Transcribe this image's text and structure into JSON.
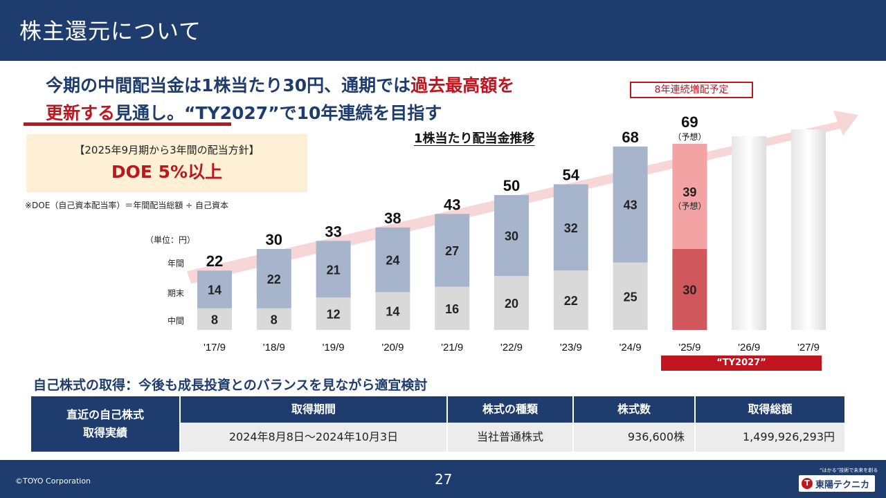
{
  "header": {
    "title": "株主還元について"
  },
  "headline": {
    "part1": "今期の中間配当金は1株当たり30円、通期では",
    "part2_red": "過去最高額を",
    "part3_red": "更新する",
    "part4": "見通し。“TY2027”で10年連続を目指す"
  },
  "policy": {
    "line1": "【2025年9月期から3年間の配当方針】",
    "line2": "DOE 5%以上",
    "note": "※DOE（自己資本配当率）＝年間配当総額 ÷ 自己資本"
  },
  "chart_data": {
    "type": "bar",
    "title": "1株当たり配当金推移",
    "unit": "（単位：円）",
    "row_labels": {
      "annual": "年間",
      "year_end": "期末",
      "interim": "中間"
    },
    "categories": [
      "'17/9",
      "'18/9",
      "'19/9",
      "'20/9",
      "'21/9",
      "'22/9",
      "'23/9",
      "'24/9",
      "'25/9",
      "'26/9",
      "'27/9"
    ],
    "series": [
      {
        "name": "中間",
        "values": [
          8,
          8,
          12,
          14,
          16,
          20,
          22,
          25,
          30,
          null,
          null
        ]
      },
      {
        "name": "期末",
        "values": [
          14,
          22,
          21,
          24,
          27,
          30,
          32,
          43,
          39,
          null,
          null
        ]
      }
    ],
    "totals": [
      22,
      30,
      33,
      38,
      43,
      50,
      54,
      68,
      69,
      null,
      null
    ],
    "forecast_index": 8,
    "forecast_label": "（予想）",
    "future_indices": [
      9,
      10
    ],
    "tag": "8年連続増配予定",
    "ty_label": "“TY2027”",
    "colors": {
      "interim": "#d9d9d9",
      "year_end": "#a7b5cc",
      "forecast_interim": "#d0575c",
      "forecast_year_end": "#f4a3a5",
      "arrow": "#f7d6d8"
    }
  },
  "buyback": {
    "title": "自己株式の取得：今後も成長投資とのバランスを見ながら適宜検討",
    "row_head_line1": "直近の自己株式",
    "row_head_line2": "取得実績",
    "columns": [
      {
        "header": "取得期間",
        "value": "2024年8月8日～2024年10月3日"
      },
      {
        "header": "株式の種類",
        "value": "当社普通株式"
      },
      {
        "header": "株式数",
        "value": "936,600株"
      },
      {
        "header": "取得総額",
        "value": "1,499,926,293円"
      }
    ]
  },
  "footer": {
    "copyright": "©TOYO Corporation",
    "page": "27",
    "tagline": "“はかる”技術で未来を創る",
    "logo_text": "東陽テクニカ"
  }
}
